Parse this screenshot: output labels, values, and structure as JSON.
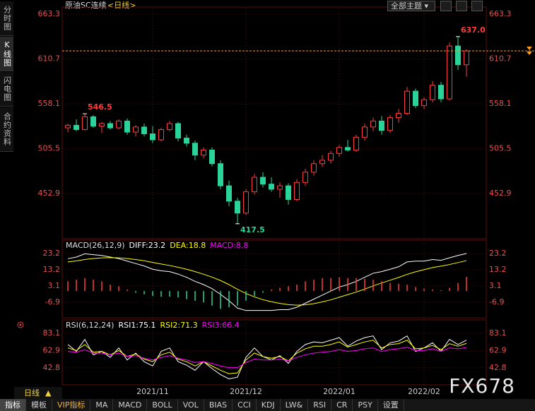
{
  "header": {
    "symbol": "原油SC连续",
    "period": "<日线>",
    "theme_button": "全部主题"
  },
  "sidebar": [
    "分时图",
    "K线图",
    "闪电图",
    "合约资料"
  ],
  "footer": {
    "period_tab": "日线",
    "arrow": "▲",
    "tabs": [
      "指标",
      "模板",
      "VIP指标",
      "MA",
      "MACD",
      "BOLL",
      "VOL",
      "BIAS",
      "CCI",
      "KDJ",
      "LW&",
      "RSI",
      "CR",
      "PSY",
      "设置"
    ]
  },
  "watermark": "FX678",
  "chart_data": [
    {
      "type": "candlestick",
      "categories": [
        null,
        null,
        null,
        null,
        null,
        null,
        null,
        null,
        null,
        null,
        "2021/11",
        null,
        null,
        null,
        null,
        null,
        null,
        null,
        null,
        null,
        null,
        "2021/12",
        null,
        null,
        null,
        null,
        null,
        null,
        null,
        null,
        null,
        null,
        "2022/01",
        null,
        null,
        null,
        null,
        null,
        null,
        null,
        null,
        null,
        "2022/02",
        null,
        null,
        null,
        null,
        null
      ],
      "open": [
        530,
        533,
        528,
        543,
        532,
        535,
        530,
        538,
        525,
        531,
        523,
        516,
        528,
        535,
        518,
        512,
        498,
        504,
        488,
        462,
        444,
        430,
        455,
        472,
        464,
        458,
        462,
        446,
        466,
        478,
        488,
        492,
        500,
        507,
        504,
        519,
        531,
        538,
        527,
        542,
        547,
        573,
        556,
        563,
        580,
        564,
        626,
        604
      ],
      "high": [
        535,
        540,
        546.5,
        545,
        537,
        538,
        540,
        541,
        533,
        535,
        532,
        530,
        538,
        537,
        522,
        515,
        507,
        507,
        492,
        468,
        448,
        458,
        476,
        478,
        472,
        466,
        465,
        470,
        482,
        492,
        498,
        503,
        510,
        516,
        522,
        535,
        542,
        544,
        545,
        552,
        578,
        576,
        566,
        585,
        584,
        630,
        637,
        622
      ],
      "low": [
        525,
        526,
        527,
        530,
        524,
        528,
        528,
        522,
        520,
        520,
        512,
        514,
        526,
        514,
        508,
        492,
        494,
        485,
        458,
        438,
        417.5,
        428,
        452,
        460,
        455,
        448,
        440,
        444,
        462,
        474,
        484,
        488,
        496,
        502,
        502,
        515,
        526,
        522,
        524,
        536,
        545,
        553,
        552,
        560,
        560,
        562,
        598,
        590
      ],
      "close": [
        533,
        528,
        543,
        532,
        535,
        530,
        538,
        525,
        531,
        523,
        516,
        528,
        535,
        518,
        512,
        498,
        504,
        488,
        462,
        444,
        430,
        455,
        472,
        464,
        458,
        462,
        446,
        466,
        478,
        488,
        492,
        500,
        507,
        504,
        519,
        531,
        538,
        527,
        542,
        547,
        573,
        556,
        563,
        580,
        564,
        626,
        604,
        620.3
      ],
      "up_color": "#ff3c3c",
      "down_color": "#2ad39a",
      "ylim": [
        400,
        670
      ],
      "yticks": [
        452.9,
        505.5,
        558.1,
        610.7,
        663.3
      ],
      "grid": true,
      "last_price": 620.3,
      "last_price_color": "#ff9a1a",
      "annotations": [
        {
          "label": "546.5",
          "value": 546.5
        },
        {
          "label": "637.0",
          "value": 637
        },
        {
          "label": "417.5",
          "value": 417.5
        }
      ]
    },
    {
      "type": "indicator",
      "header": "MACD(26,12,9)",
      "ylim": [
        -16.5,
        30.6
      ],
      "yticks": [
        -6.9,
        3.1,
        13.2,
        23.2
      ],
      "up_color": "#ff3c3c",
      "down_color": "#2ad39a",
      "series": [
        {
          "label": "DIFF:23.2",
          "color": "#ffffff",
          "values": [
            20,
            21,
            23,
            22.5,
            22,
            21,
            20,
            18.5,
            17,
            15.5,
            13.5,
            12.5,
            12,
            10.5,
            8.5,
            6,
            4,
            1.5,
            -2,
            -6,
            -10.5,
            -12,
            -12,
            -12,
            -12,
            -11.5,
            -11.5,
            -10,
            -7.5,
            -5,
            -2.5,
            0,
            2.5,
            4,
            6,
            8.5,
            11,
            12,
            13.5,
            15,
            18,
            18.5,
            18.5,
            19.5,
            19,
            20.5,
            22,
            23.2
          ]
        },
        {
          "label": "DEA:18.8",
          "color": "#ffff00",
          "values": [
            18,
            18.6,
            19.5,
            20.1,
            20.5,
            20.6,
            20.5,
            20.1,
            19.5,
            18.7,
            17.7,
            16.7,
            15.8,
            14.7,
            13.5,
            12,
            10.4,
            8.6,
            6.5,
            4,
            1.1,
            -1.5,
            -3.6,
            -5.3,
            -6.6,
            -7.6,
            -8.4,
            -8.7,
            -8.5,
            -7.8,
            -6.7,
            -5.4,
            -3.8,
            -2.2,
            -0.6,
            1.2,
            3.2,
            5,
            6.7,
            8.4,
            10.3,
            11.9,
            13.2,
            14.5,
            15.4,
            16.4,
            17.6,
            18.8
          ]
        },
        {
          "label": "MACD:8.8",
          "color": "#ff00ff",
          "style": "histogram",
          "values": [
            6,
            7,
            8,
            7,
            6,
            4,
            3,
            1,
            -1,
            -2,
            -3,
            -3.5,
            -3.5,
            -4,
            -5,
            -6,
            -7,
            -9,
            -11,
            -10,
            -9,
            -6,
            -3,
            -1,
            1,
            2,
            3,
            4,
            6,
            7,
            8,
            8,
            8.5,
            8,
            8,
            7.5,
            7,
            6,
            5,
            4.5,
            4,
            2.5,
            1.5,
            1,
            0.5,
            2,
            5,
            8.8
          ]
        }
      ]
    },
    {
      "type": "indicator",
      "header": "RSI(6,12,24)",
      "ylim": [
        23,
        97
      ],
      "yticks": [
        42.8,
        62.9,
        83.1
      ],
      "series": [
        {
          "label": "RSI1:75.1",
          "color": "#ffffff",
          "values": [
            70,
            62,
            76,
            58,
            62,
            55,
            66,
            52,
            60,
            50,
            45,
            62,
            66,
            50,
            46,
            40,
            50,
            42,
            35,
            30,
            32,
            55,
            66,
            56,
            52,
            57,
            48,
            62,
            70,
            73,
            72,
            75,
            78,
            68,
            74,
            78,
            80,
            64,
            72,
            74,
            80,
            62,
            66,
            72,
            62,
            76,
            70,
            75.1
          ]
        },
        {
          "label": "RSI2:71.3",
          "color": "#ffff00",
          "values": [
            66,
            63,
            70,
            61,
            62,
            58,
            63,
            56,
            59,
            53,
            50,
            58,
            61,
            53,
            50,
            45,
            50,
            45,
            40,
            36,
            37,
            52,
            60,
            56,
            54,
            56,
            51,
            60,
            65,
            68,
            68,
            70,
            73,
            67,
            70,
            73,
            75,
            66,
            70,
            71,
            75,
            65,
            66,
            69,
            64,
            71,
            68,
            71.3
          ]
        },
        {
          "label": "RSI3:66.4",
          "color": "#ff00ff",
          "values": [
            62,
            61,
            64,
            60,
            60,
            58,
            60,
            56,
            57,
            54,
            52,
            55,
            57,
            54,
            52,
            49,
            50,
            48,
            45,
            43,
            43,
            49,
            53,
            52,
            52,
            53,
            51,
            55,
            58,
            60,
            61,
            62,
            64,
            62,
            63,
            65,
            66,
            62,
            64,
            65,
            67,
            63,
            63,
            65,
            62,
            66,
            65,
            66.4
          ]
        }
      ]
    }
  ]
}
